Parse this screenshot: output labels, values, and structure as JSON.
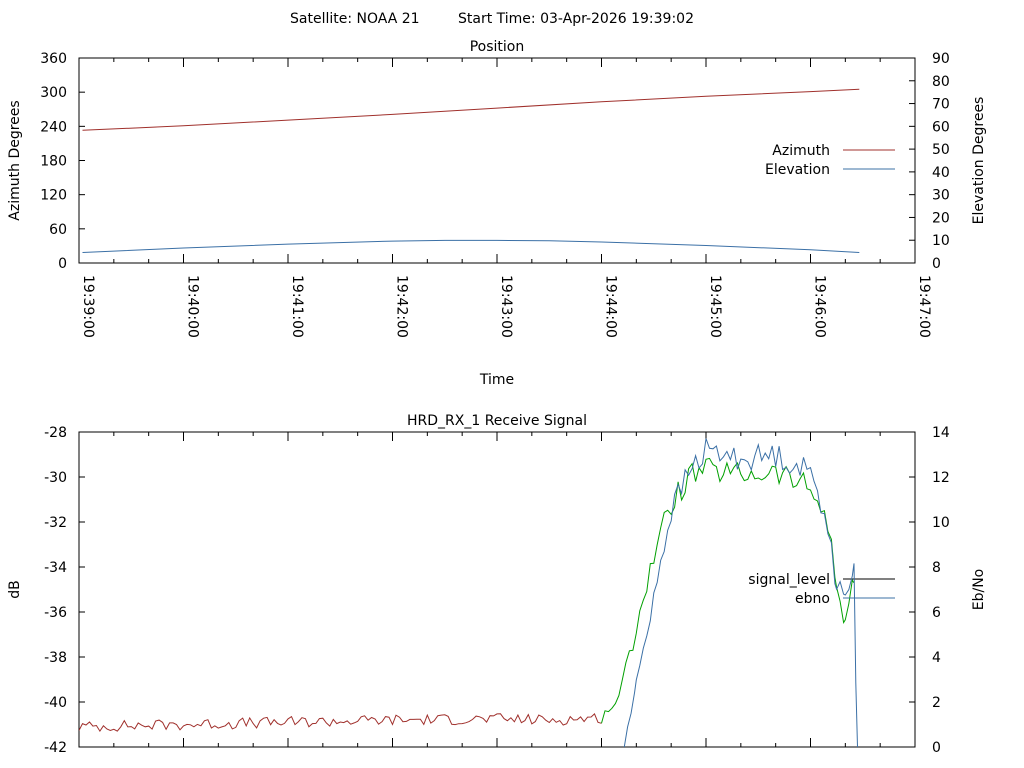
{
  "header": {
    "satellite_label": "Satellite: NOAA 21",
    "start_time_label": "Start Time: 03-Apr-2026 19:39:02"
  },
  "chart_data": [
    {
      "type": "line",
      "title": "Position",
      "xlabel": "Time",
      "ylabel": "Azimuth Degrees",
      "y2label": "Elevation Degrees",
      "x_ticks": [
        "19:39:00",
        "19:40:00",
        "19:41:00",
        "19:42:00",
        "19:43:00",
        "19:44:00",
        "19:45:00",
        "19:46:00",
        "19:47:00"
      ],
      "xlim": [
        "19:39:00",
        "19:47:00"
      ],
      "ylim": [
        0,
        360
      ],
      "y_ticks": [
        0,
        60,
        120,
        180,
        240,
        300,
        360
      ],
      "y2lim": [
        0,
        90
      ],
      "y2_ticks": [
        0,
        10,
        20,
        30,
        40,
        50,
        60,
        70,
        80,
        90
      ],
      "legend_position": "right",
      "series": [
        {
          "name": "Azimuth",
          "axis": "y",
          "color": "#a0302c",
          "x": [
            "19:39:02",
            "19:40:00",
            "19:41:00",
            "19:42:00",
            "19:43:00",
            "19:44:00",
            "19:45:00",
            "19:46:00",
            "19:46:28"
          ],
          "values": [
            233,
            241,
            251,
            261,
            272,
            283,
            293,
            301,
            305
          ]
        },
        {
          "name": "Elevation",
          "axis": "y2",
          "color": "#3b70a6",
          "x": [
            "19:39:02",
            "19:40:00",
            "19:41:00",
            "19:42:00",
            "19:42:30",
            "19:43:00",
            "19:43:30",
            "19:44:00",
            "19:45:00",
            "19:46:00",
            "19:46:28"
          ],
          "values": [
            4.6,
            6.6,
            8.3,
            9.6,
            9.9,
            9.9,
            9.8,
            9.2,
            7.7,
            5.8,
            4.6
          ]
        }
      ]
    },
    {
      "type": "line",
      "title": "HRD_RX_1 Receive Signal",
      "ylabel": "dB",
      "y2label": "Eb/No",
      "xlim": [
        "19:39:00",
        "19:47:00"
      ],
      "ylim": [
        -42,
        -28
      ],
      "y_ticks": [
        -42,
        -40,
        -38,
        -36,
        -34,
        -32,
        -30,
        -28
      ],
      "y2lim": [
        0,
        14
      ],
      "y2_ticks": [
        0,
        2,
        4,
        6,
        8,
        10,
        12,
        14
      ],
      "legend_position": "right",
      "series": [
        {
          "name": "signal_level",
          "axis": "y",
          "color": "#000000",
          "x": [
            "19:39:00",
            "19:40:00",
            "19:41:00",
            "19:42:00",
            "19:43:00",
            "19:43:30",
            "19:44:00",
            "19:44:10",
            "19:44:20",
            "19:44:30",
            "19:44:40",
            "19:44:50",
            "19:45:00",
            "19:45:20",
            "19:45:40",
            "19:46:00",
            "19:46:10",
            "19:46:15",
            "19:46:20",
            "19:46:25"
          ],
          "values": [
            -41.1,
            -41.0,
            -40.9,
            -40.8,
            -40.75,
            -40.8,
            -40.7,
            -39.8,
            -36.5,
            -33.5,
            -31.2,
            -30.0,
            -29.7,
            -29.9,
            -29.8,
            -30.5,
            -32.0,
            -35.0,
            -36.2,
            -34.7
          ],
          "segments": [
            {
              "color": "#a0302c",
              "to": "19:44:00"
            },
            {
              "color": "#00a000",
              "from": "19:44:00",
              "to": "19:46:25"
            }
          ]
        },
        {
          "name": "ebno",
          "axis": "y2",
          "color": "#3b70a6",
          "x": [
            "19:44:13",
            "19:44:20",
            "19:44:30",
            "19:44:40",
            "19:44:50",
            "19:45:00",
            "19:45:20",
            "19:45:40",
            "19:46:00",
            "19:46:10",
            "19:46:15",
            "19:46:20",
            "19:46:25",
            "19:46:26",
            "19:46:27"
          ],
          "values": [
            0.0,
            2.8,
            6.8,
            10.5,
            12.2,
            13.2,
            12.8,
            13.0,
            12.2,
            10.0,
            7.2,
            6.3,
            8.5,
            3.0,
            0.0
          ]
        }
      ]
    }
  ]
}
